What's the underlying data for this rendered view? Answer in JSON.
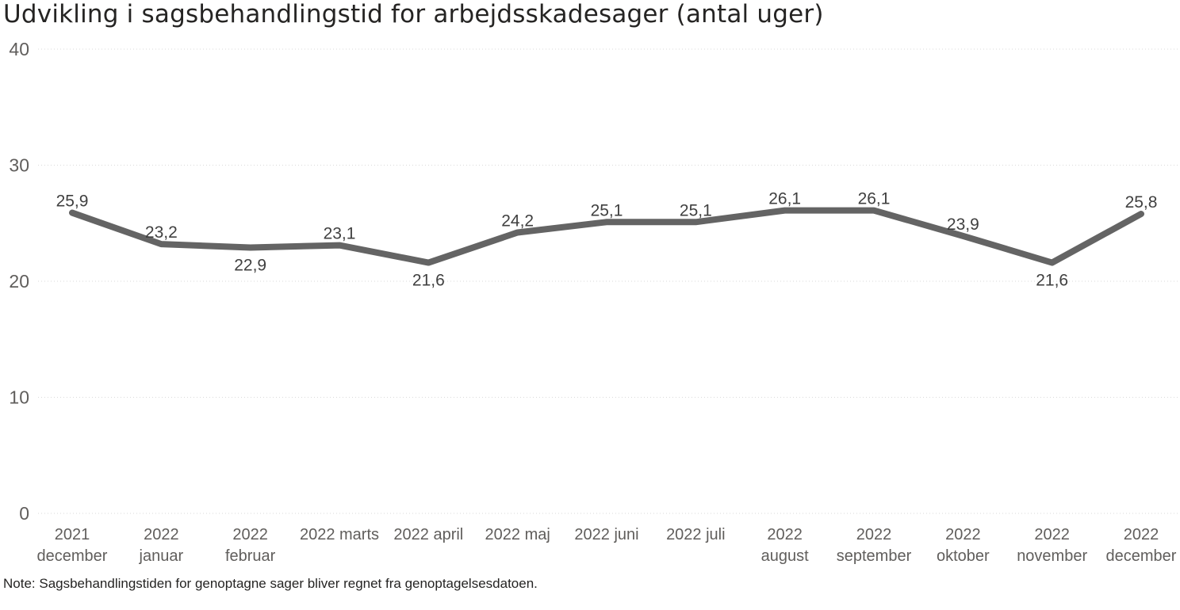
{
  "title": "Udvikling i sagsbehandlingstid for arbejdsskadesager (antal uger)",
  "note": "Note: Sagsbehandlingstiden for genoptagne sager bliver regnet fra genoptagelsesdatoen.",
  "colors": {
    "line": "#646464",
    "grid": "#d9d9d9",
    "axis_text": "#605e5c",
    "label_text": "#404040"
  },
  "chart_data": {
    "type": "line",
    "title": "Udvikling i sagsbehandlingstid for arbejdsskadesager (antal uger)",
    "xlabel": "",
    "ylabel": "",
    "ylim": [
      0,
      40
    ],
    "yticks": [
      "0",
      "10",
      "20",
      "30",
      "40"
    ],
    "grid": true,
    "categories": [
      [
        "2021",
        "december"
      ],
      [
        "2022",
        "januar"
      ],
      [
        "2022",
        "februar"
      ],
      [
        "2022 marts"
      ],
      [
        "2022 april"
      ],
      [
        "2022 maj"
      ],
      [
        "2022 juni"
      ],
      [
        "2022 juli"
      ],
      [
        "2022",
        "august"
      ],
      [
        "2022",
        "september"
      ],
      [
        "2022",
        "oktober"
      ],
      [
        "2022",
        "november"
      ],
      [
        "2022",
        "december"
      ]
    ],
    "values": [
      25.9,
      23.2,
      22.9,
      23.1,
      21.6,
      24.2,
      25.1,
      25.1,
      26.1,
      26.1,
      23.9,
      21.6,
      25.8
    ],
    "labels": [
      "25,9",
      "23,2",
      "22,9",
      "23,1",
      "21,6",
      "24,2",
      "25,1",
      "25,1",
      "26,1",
      "26,1",
      "23,9",
      "21,6",
      "25,8"
    ],
    "label_positions": [
      "above",
      "above",
      "below",
      "above",
      "below",
      "above",
      "above",
      "above",
      "above",
      "above",
      "above",
      "below",
      "above"
    ]
  }
}
